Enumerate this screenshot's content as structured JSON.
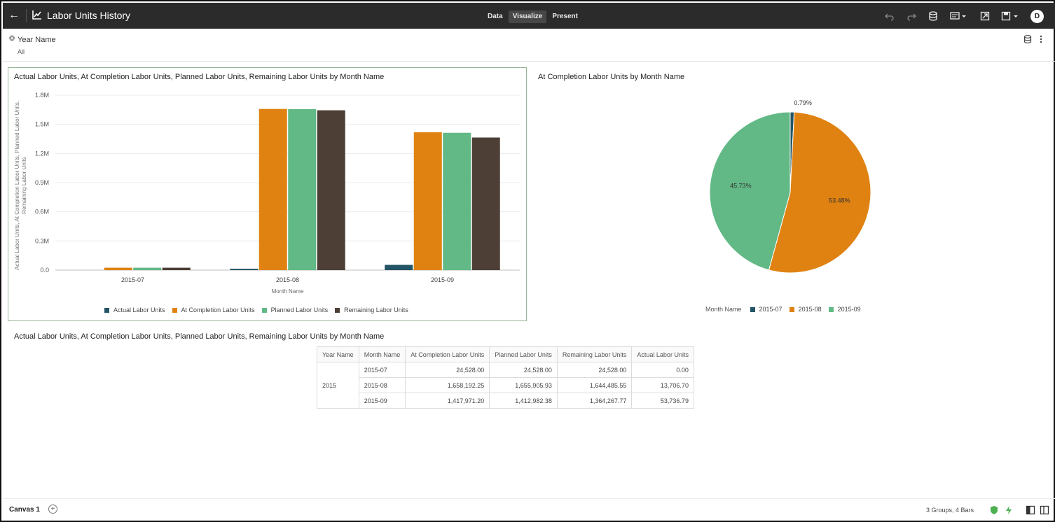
{
  "header": {
    "title": "Labor Units History",
    "tabs": [
      {
        "label": "Data",
        "active": false
      },
      {
        "label": "Visualize",
        "active": true
      },
      {
        "label": "Present",
        "active": false
      }
    ],
    "user_initial": "D",
    "icons": [
      "back-arrow-icon",
      "chart-icon",
      "undo-icon",
      "redo-icon",
      "data-panel-icon",
      "comment-icon",
      "present-icon",
      "save-icon"
    ]
  },
  "filter": {
    "name": "Year Name",
    "value": "All"
  },
  "bar_panel": {
    "title": "Actual Labor Units, At Completion Labor Units, Planned Labor Units, Remaining Labor Units by Month Name"
  },
  "pie_panel": {
    "title": "At Completion Labor Units by Month Name"
  },
  "colors": {
    "actual": "#235566",
    "at_completion": "#e08212",
    "planned": "#62b986",
    "remaining": "#4d3f36",
    "accent": "#2b2b2b"
  },
  "chart_data": [
    {
      "type": "bar",
      "title": "Actual Labor Units, At Completion Labor Units, Planned Labor Units, Remaining Labor Units by Month Name",
      "xlabel": "Month Name",
      "ylabel": "Actual Labor Units, At Completion Labor Units, Planned Labor Units, Remaining Labor Units",
      "categories": [
        "2015-07",
        "2015-08",
        "2015-09"
      ],
      "ylim": [
        0,
        1800000
      ],
      "yticks": [
        0,
        300000,
        600000,
        900000,
        1200000,
        1500000,
        1800000
      ],
      "ytick_labels": [
        "0.0",
        "0.3M",
        "0.6M",
        "0.9M",
        "1.2M",
        "1.5M",
        "1.8M"
      ],
      "series": [
        {
          "name": "Actual Labor Units",
          "values": [
            0,
            13706.7,
            53736.79
          ]
        },
        {
          "name": "At Completion Labor Units",
          "values": [
            24528.0,
            1658192.25,
            1417971.2
          ]
        },
        {
          "name": "Planned Labor Units",
          "values": [
            24528.0,
            1655905.93,
            1412982.38
          ]
        },
        {
          "name": "Remaining Labor Units",
          "values": [
            24528.0,
            1644485.55,
            1364267.77
          ]
        }
      ],
      "legend_position": "bottom",
      "grid": true
    },
    {
      "type": "pie",
      "title": "At Completion Labor Units by Month Name",
      "legend_title": "Month Name",
      "slices": [
        {
          "label": "2015-07",
          "percent": 0.79,
          "display": "0.79%"
        },
        {
          "label": "2015-08",
          "percent": 53.48,
          "display": "53.48%"
        },
        {
          "label": "2015-09",
          "percent": 45.73,
          "display": "45.73%"
        }
      ],
      "legend_position": "bottom"
    },
    {
      "type": "table",
      "title": "Actual Labor Units, At Completion Labor Units, Planned Labor Units, Remaining Labor Units by Month Name",
      "columns": [
        "Year Name",
        "Month Name",
        "At Completion Labor Units",
        "Planned Labor Units",
        "Remaining Labor Units",
        "Actual Labor Units"
      ],
      "group": "2015",
      "rows": [
        [
          "2015-07",
          "24,528.00",
          "24,528.00",
          "24,528.00",
          "0.00"
        ],
        [
          "2015-08",
          "1,658,192.25",
          "1,655,905.93",
          "1,644,485.55",
          "13,706.70"
        ],
        [
          "2015-09",
          "1,417,971.20",
          "1,412,982.38",
          "1,364,267.77",
          "53,736.79"
        ]
      ]
    }
  ],
  "status": {
    "canvas_tab": "Canvas 1",
    "summary": "3 Groups, 4 Bars"
  }
}
